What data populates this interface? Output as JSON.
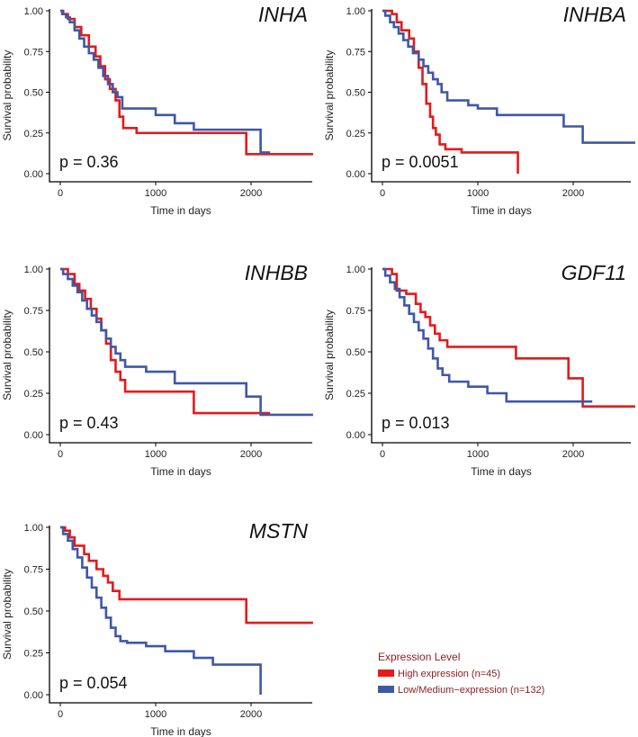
{
  "chart_data": [
    {
      "type": "line",
      "gene": "INHA",
      "p_value_label": "p = 0.36",
      "xlabel": "Time in days",
      "ylabel": "Survival probability",
      "xlim": [
        0,
        2700
      ],
      "ylim": [
        0,
        1
      ],
      "xticks": [
        "0",
        "1000",
        "2000"
      ],
      "yticks": [
        "0.00",
        "0.25",
        "0.50",
        "0.75",
        "1.00"
      ],
      "series": [
        {
          "name": "High expression (n=45)",
          "color": "#e41a1c",
          "x": [
            0,
            30,
            80,
            150,
            220,
            300,
            370,
            420,
            470,
            520,
            580,
            620,
            660,
            800,
            1950,
            2650
          ],
          "y": [
            1.0,
            0.98,
            0.95,
            0.9,
            0.85,
            0.78,
            0.72,
            0.66,
            0.58,
            0.52,
            0.45,
            0.35,
            0.28,
            0.25,
            0.12,
            0.12
          ]
        },
        {
          "name": "Low/Medium-expression (n=132)",
          "color": "#3e58a8",
          "x": [
            0,
            20,
            60,
            100,
            150,
            200,
            250,
            300,
            350,
            400,
            450,
            500,
            550,
            600,
            650,
            800,
            1000,
            1200,
            1400,
            1700,
            2100,
            2200
          ],
          "y": [
            1.0,
            0.98,
            0.96,
            0.93,
            0.88,
            0.83,
            0.78,
            0.74,
            0.7,
            0.65,
            0.6,
            0.55,
            0.5,
            0.47,
            0.4,
            0.4,
            0.36,
            0.31,
            0.27,
            0.27,
            0.13,
            0.13
          ]
        }
      ]
    },
    {
      "type": "line",
      "gene": "INHBA",
      "p_value_label": "p = 0.0051",
      "xlabel": "Time in days",
      "ylabel": "Survival probability",
      "xlim": [
        0,
        2700
      ],
      "ylim": [
        0,
        1
      ],
      "xticks": [
        "0",
        "1000",
        "2000"
      ],
      "yticks": [
        "0.00",
        "0.25",
        "0.50",
        "0.75",
        "1.00"
      ],
      "series": [
        {
          "name": "High expression (n=45)",
          "color": "#e41a1c",
          "x": [
            0,
            100,
            150,
            200,
            280,
            330,
            380,
            420,
            460,
            500,
            530,
            560,
            600,
            660,
            830,
            1420
          ],
          "y": [
            1.0,
            0.98,
            0.93,
            0.88,
            0.83,
            0.75,
            0.65,
            0.55,
            0.43,
            0.35,
            0.28,
            0.24,
            0.18,
            0.15,
            0.13,
            0.0
          ]
        },
        {
          "name": "Low/Medium-expression (n=132)",
          "color": "#3e58a8",
          "x": [
            0,
            30,
            80,
            120,
            170,
            220,
            270,
            320,
            380,
            430,
            480,
            530,
            580,
            620,
            680,
            900,
            1000,
            1200,
            1900,
            2100,
            2650
          ],
          "y": [
            1.0,
            0.97,
            0.93,
            0.9,
            0.86,
            0.82,
            0.78,
            0.74,
            0.7,
            0.66,
            0.62,
            0.58,
            0.55,
            0.5,
            0.45,
            0.42,
            0.4,
            0.36,
            0.29,
            0.19,
            0.19
          ]
        }
      ]
    },
    {
      "type": "line",
      "gene": "INHBB",
      "p_value_label": "p = 0.43",
      "xlabel": "Time in days",
      "ylabel": "Survival probability",
      "xlim": [
        0,
        2700
      ],
      "ylim": [
        0,
        1
      ],
      "xticks": [
        "0",
        "1000",
        "2000"
      ],
      "yticks": [
        "0.00",
        "0.25",
        "0.50",
        "0.75",
        "1.00"
      ],
      "series": [
        {
          "name": "High expression (n=45)",
          "color": "#e41a1c",
          "x": [
            0,
            80,
            150,
            200,
            260,
            320,
            380,
            430,
            480,
            530,
            580,
            630,
            680,
            1400,
            2200
          ],
          "y": [
            1.0,
            0.97,
            0.91,
            0.87,
            0.82,
            0.76,
            0.7,
            0.63,
            0.55,
            0.45,
            0.38,
            0.33,
            0.26,
            0.13,
            0.13
          ]
        },
        {
          "name": "Low/Medium-expression (n=132)",
          "color": "#3e58a8",
          "x": [
            0,
            30,
            80,
            130,
            180,
            230,
            280,
            330,
            380,
            430,
            480,
            530,
            580,
            630,
            680,
            900,
            1200,
            1950,
            2100,
            2650
          ],
          "y": [
            1.0,
            0.97,
            0.94,
            0.9,
            0.86,
            0.81,
            0.76,
            0.72,
            0.68,
            0.63,
            0.58,
            0.53,
            0.49,
            0.45,
            0.41,
            0.38,
            0.31,
            0.23,
            0.12,
            0.12
          ]
        }
      ]
    },
    {
      "type": "line",
      "gene": "GDF11",
      "p_value_label": "p = 0.013",
      "xlabel": "Time in days",
      "ylabel": "Survival probability",
      "xlim": [
        0,
        2700
      ],
      "ylim": [
        0,
        1
      ],
      "xticks": [
        "0",
        "1000",
        "2000"
      ],
      "yticks": [
        "0.00",
        "0.25",
        "0.50",
        "0.75",
        "1.00"
      ],
      "series": [
        {
          "name": "High expression (n=45)",
          "color": "#e41a1c",
          "x": [
            0,
            100,
            150,
            250,
            350,
            400,
            450,
            500,
            550,
            600,
            680,
            1400,
            1950,
            2100,
            2650
          ],
          "y": [
            1.0,
            0.97,
            0.87,
            0.85,
            0.79,
            0.74,
            0.71,
            0.66,
            0.61,
            0.57,
            0.53,
            0.46,
            0.34,
            0.17,
            0.17
          ]
        },
        {
          "name": "Low/Medium-expression (n=132)",
          "color": "#3e58a8",
          "x": [
            0,
            30,
            80,
            130,
            180,
            230,
            280,
            330,
            380,
            430,
            480,
            530,
            580,
            630,
            700,
            900,
            1100,
            1300,
            2200
          ],
          "y": [
            1.0,
            0.96,
            0.92,
            0.88,
            0.83,
            0.78,
            0.73,
            0.68,
            0.63,
            0.58,
            0.52,
            0.46,
            0.4,
            0.36,
            0.32,
            0.29,
            0.25,
            0.2,
            0.2
          ]
        }
      ]
    },
    {
      "type": "line",
      "gene": "MSTN",
      "p_value_label": "p = 0.054",
      "xlabel": "Time in days",
      "ylabel": "Survival probability",
      "xlim": [
        0,
        2700
      ],
      "ylim": [
        0,
        1
      ],
      "xticks": [
        "0",
        "1000",
        "2000"
      ],
      "yticks": [
        "0.00",
        "0.25",
        "0.50",
        "0.75",
        "1.00"
      ],
      "series": [
        {
          "name": "High expression (n=45)",
          "color": "#e41a1c",
          "x": [
            0,
            50,
            100,
            150,
            250,
            300,
            380,
            450,
            500,
            550,
            620,
            1950,
            2650
          ],
          "y": [
            1.0,
            0.98,
            0.94,
            0.89,
            0.84,
            0.8,
            0.75,
            0.71,
            0.67,
            0.62,
            0.57,
            0.43,
            0.43
          ]
        },
        {
          "name": "Low/Medium-expression (n=132)",
          "color": "#3e58a8",
          "x": [
            0,
            30,
            80,
            130,
            180,
            230,
            280,
            330,
            380,
            430,
            480,
            530,
            580,
            630,
            700,
            900,
            1100,
            1400,
            1600,
            2100
          ],
          "y": [
            1.0,
            0.96,
            0.92,
            0.87,
            0.82,
            0.76,
            0.7,
            0.64,
            0.58,
            0.52,
            0.46,
            0.4,
            0.35,
            0.32,
            0.31,
            0.29,
            0.26,
            0.22,
            0.18,
            0.0
          ]
        }
      ]
    }
  ],
  "legend": {
    "title": "Expression Level",
    "title_color": "#8b1c1c",
    "items": [
      {
        "label": "High expression (n=45)",
        "color": "#e41a1c"
      },
      {
        "label": "Low/Medium−expression (n=132)",
        "color": "#3e58a8"
      }
    ]
  }
}
